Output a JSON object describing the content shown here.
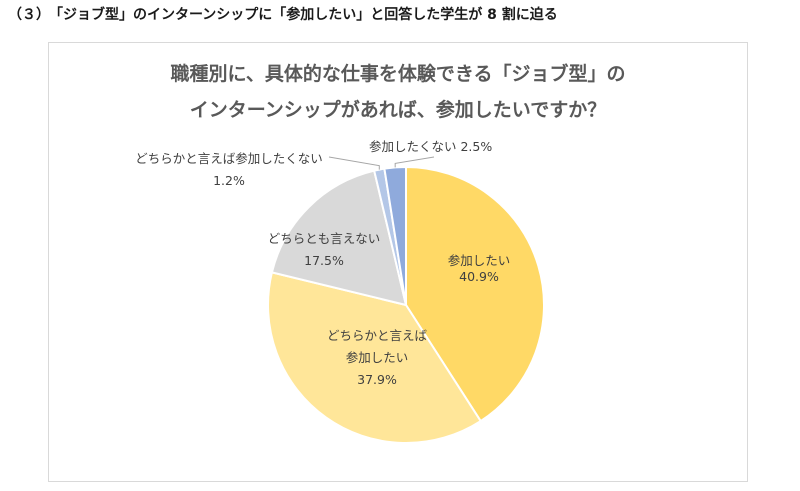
{
  "heading": {
    "number": "（３）",
    "text": "「ジョブ型」のインターンシップに「参加したい」と回答した学生が 8 割に迫る"
  },
  "chart_data": {
    "type": "pie",
    "title_line1": "職種別に、具体的な仕事を体験できる「ジョブ型」の",
    "title_line2": "インターンシップがあれば、参加したいですか？",
    "slices": [
      {
        "label": "参加したい",
        "value": 40.9,
        "value_label": "40.9%",
        "color": "#FFD966"
      },
      {
        "label": "どちらかと言えば参加したい",
        "label_lines": [
          "どちらかと言えば",
          "参加したい"
        ],
        "value": 37.9,
        "value_label": "37.9%",
        "color": "#FFE699"
      },
      {
        "label": "どちらとも言えない",
        "value": 17.5,
        "value_label": "17.5%",
        "color": "#D9D9D9"
      },
      {
        "label": "どちらかと言えば参加したくない",
        "value": 1.2,
        "value_label": "1.2%",
        "color": "#B4C7E7"
      },
      {
        "label": "参加したくない",
        "value": 2.5,
        "value_label": "2.5%",
        "color": "#8FAADC"
      }
    ]
  }
}
